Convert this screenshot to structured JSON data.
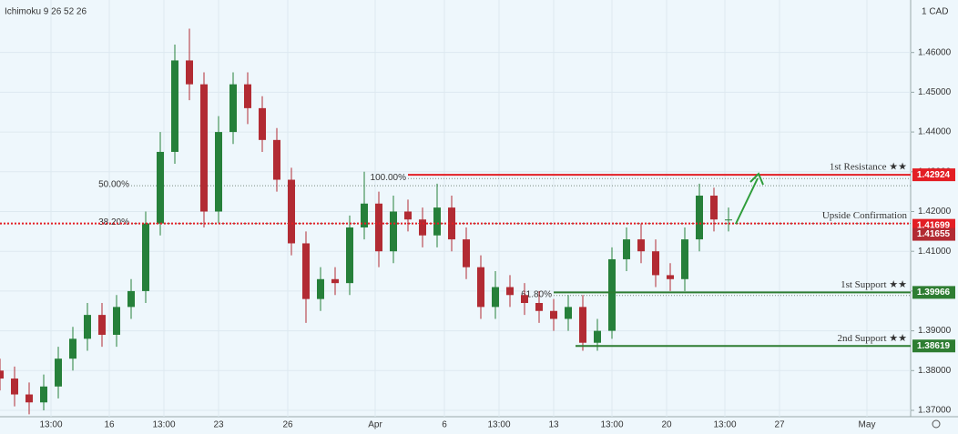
{
  "chart_data": {
    "type": "candlestick",
    "indicator": "Ichimoku 9 26 52 26",
    "currency": "1 CAD",
    "xlim": [
      0,
      125
    ],
    "xticks": [
      {
        "value": 7,
        "label": "13:00"
      },
      {
        "value": 15,
        "label": "16"
      },
      {
        "value": 22.5,
        "label": "13:00"
      },
      {
        "value": 30,
        "label": "23"
      },
      {
        "value": 39.5,
        "label": "26"
      },
      {
        "value": 51.5,
        "label": "Apr"
      },
      {
        "value": 61,
        "label": "6"
      },
      {
        "value": 68.5,
        "label": "13:00"
      },
      {
        "value": 76,
        "label": "13"
      },
      {
        "value": 84,
        "label": "13:00"
      },
      {
        "value": 91.5,
        "label": "20"
      },
      {
        "value": 99.5,
        "label": "13:00"
      },
      {
        "value": 107,
        "label": "27"
      },
      {
        "value": 119,
        "label": "May"
      }
    ],
    "ylim": [
      1.3684,
      1.4732
    ],
    "yticks": [
      {
        "value": 1.37,
        "label": "1.37000"
      },
      {
        "value": 1.38,
        "label": "1.38000"
      },
      {
        "value": 1.39,
        "label": "1.39000"
      },
      {
        "value": 1.4,
        "label": "1.40000"
      },
      {
        "value": 1.41,
        "label": "1.41000"
      },
      {
        "value": 1.42,
        "label": "1.42000"
      },
      {
        "value": 1.43,
        "label": "1.43000"
      },
      {
        "value": 1.44,
        "label": "1.44000"
      },
      {
        "value": 1.45,
        "label": "1.45000"
      },
      {
        "value": 1.46,
        "label": "1.46000"
      }
    ],
    "grid": true,
    "up_color": "#26803a",
    "down_color": "#b22b33",
    "x": [
      0,
      2,
      4,
      6,
      8,
      10,
      12,
      14,
      16,
      18,
      20,
      22,
      24,
      26,
      28,
      30,
      32,
      34,
      36,
      38,
      40,
      42,
      44,
      46,
      48,
      50,
      52,
      54,
      56,
      58,
      60,
      62,
      64,
      66,
      68,
      70,
      72,
      74,
      76,
      78,
      80,
      82,
      84,
      86,
      88,
      90,
      92,
      94,
      96,
      98,
      100
    ],
    "open": [
      1.38,
      1.378,
      1.374,
      1.372,
      1.376,
      1.383,
      1.388,
      1.394,
      1.389,
      1.396,
      1.4,
      1.417,
      1.435,
      1.458,
      1.452,
      1.42,
      1.44,
      1.452,
      1.446,
      1.438,
      1.428,
      1.412,
      1.398,
      1.403,
      1.402,
      1.416,
      1.422,
      1.41,
      1.42,
      1.418,
      1.414,
      1.421,
      1.413,
      1.406,
      1.396,
      1.401,
      1.399,
      1.397,
      1.395,
      1.393,
      1.396,
      1.387,
      1.39,
      1.408,
      1.413,
      1.41,
      1.404,
      1.403,
      1.413,
      1.424,
      1.418
    ],
    "high": [
      1.383,
      1.381,
      1.377,
      1.379,
      1.386,
      1.391,
      1.397,
      1.397,
      1.399,
      1.403,
      1.42,
      1.44,
      1.462,
      1.466,
      1.455,
      1.444,
      1.455,
      1.455,
      1.449,
      1.441,
      1.431,
      1.415,
      1.406,
      1.406,
      1.419,
      1.43,
      1.425,
      1.424,
      1.423,
      1.421,
      1.427,
      1.424,
      1.416,
      1.409,
      1.405,
      1.404,
      1.402,
      1.4,
      1.398,
      1.399,
      1.399,
      1.393,
      1.411,
      1.416,
      1.417,
      1.413,
      1.407,
      1.416,
      1.427,
      1.426,
      1.421
    ],
    "low": [
      1.375,
      1.371,
      1.369,
      1.37,
      1.373,
      1.38,
      1.385,
      1.386,
      1.386,
      1.393,
      1.397,
      1.414,
      1.432,
      1.448,
      1.416,
      1.417,
      1.437,
      1.442,
      1.435,
      1.425,
      1.409,
      1.392,
      1.395,
      1.399,
      1.399,
      1.413,
      1.406,
      1.407,
      1.415,
      1.411,
      1.411,
      1.41,
      1.403,
      1.393,
      1.393,
      1.396,
      1.394,
      1.392,
      1.39,
      1.39,
      1.385,
      1.385,
      1.388,
      1.405,
      1.407,
      1.401,
      1.4,
      1.4,
      1.41,
      1.415,
      1.415
    ],
    "close": [
      1.378,
      1.374,
      1.372,
      1.376,
      1.383,
      1.388,
      1.394,
      1.389,
      1.396,
      1.4,
      1.417,
      1.435,
      1.458,
      1.452,
      1.42,
      1.44,
      1.452,
      1.446,
      1.438,
      1.428,
      1.412,
      1.398,
      1.403,
      1.402,
      1.416,
      1.422,
      1.41,
      1.42,
      1.418,
      1.414,
      1.421,
      1.413,
      1.406,
      1.396,
      1.401,
      1.399,
      1.397,
      1.395,
      1.393,
      1.396,
      1.387,
      1.39,
      1.408,
      1.413,
      1.41,
      1.404,
      1.403,
      1.413,
      1.424,
      1.418,
      1.418
    ],
    "levels": [
      {
        "name": "1st Resistance ★★",
        "value": 1.42924,
        "color": "#e31e24",
        "style": "solid",
        "start": 56
      },
      {
        "name": "Upside Confirmation",
        "value": 1.41699,
        "color": "#e31e24",
        "style": "dotted",
        "start": 0
      },
      {
        "name": "1st Support ★★",
        "value": 1.39966,
        "color": "#2e7d32",
        "style": "solid",
        "start": 76
      },
      {
        "name": "2nd Support ★★",
        "value": 1.38619,
        "color": "#2e7d32",
        "style": "solid",
        "start": 79
      }
    ],
    "last_price": 1.41655,
    "fib_levels": [
      {
        "label": "50.00%",
        "value": 1.4265,
        "start": 18
      },
      {
        "label": "38.20%",
        "value": 1.417,
        "start": 18
      },
      {
        "label": "100.00%",
        "value": 1.4283,
        "start": 56
      },
      {
        "label": "61.80%",
        "value": 1.3989,
        "start": 76
      }
    ]
  }
}
